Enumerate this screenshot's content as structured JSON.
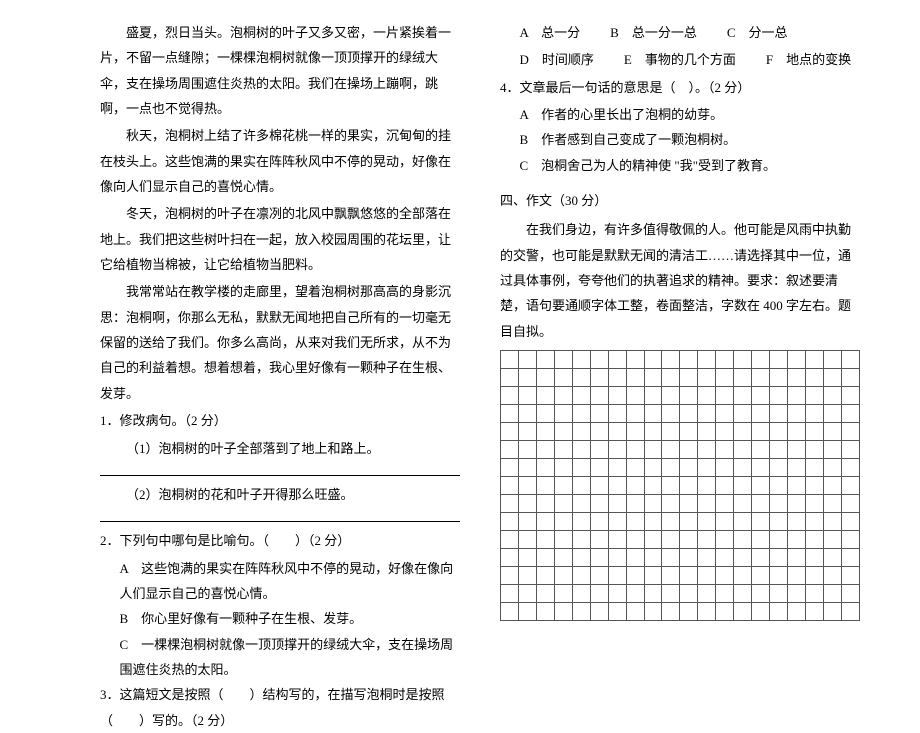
{
  "left": {
    "p1": "盛夏，烈日当头。泡桐树的叶子又多又密，一片紧挨着一片，不留一点缝隙；一棵棵泡桐树就像一顶顶撑开的绿绒大伞，支在操场周围遮住炎热的太阳。我们在操场上蹦啊，跳啊，一点也不觉得热。",
    "p2": "秋天，泡桐树上结了许多棉花桃一样的果实，沉甸甸的挂在枝头上。这些饱满的果实在阵阵秋风中不停的晃动，好像在像向人们显示自己的喜悦心情。",
    "p3": "冬天，泡桐树的叶子在凛冽的北风中飘飘悠悠的全部落在地上。我们把这些树叶扫在一起，放入校园周围的花坛里，让它给植物当棉被，让它给植物当肥料。",
    "p4": "我常常站在教学楼的走廊里，望着泡桐树那高高的身影沉思：泡桐啊，你那么无私，默默无闻地把自己所有的一切毫无保留的送给了我们。你多么高尚，从来对我们无所求，从不为自己的利益着想。想着想着，我心里好像有一颗种子在生根、发芽。",
    "q1": "1．修改病句。（2 分）",
    "q1a": "（1）泡桐树的叶子全部落到了地上和路上。",
    "q1b": "（2）泡桐树的花和叶子开得那么旺盛。",
    "q2": "2．下列句中哪句是比喻句。（　　）（2 分）",
    "q2a": "A　这些饱满的果实在阵阵秋风中不停的晃动，好像在像向人们显示自己的喜悦心情。",
    "q2b": "B　你心里好像有一颗种子在生根、发芽。",
    "q2c": "C　一棵棵泡桐树就像一顶顶撑开的绿绒大伞，支在操场周围遮住炎热的太阳。",
    "q3": "3．这篇短文是按照（　　）结构写的，在描写泡桐时是按照（　　）写的。（2 分）"
  },
  "right": {
    "opt_row1_a": "A　总一分",
    "opt_row1_b": "B　总一分一总",
    "opt_row1_c": "C　分一总",
    "opt_row2_d": "D　时间顺序",
    "opt_row2_e": "E　事物的几个方面",
    "opt_row2_f": "F　地点的变换",
    "q4": "4．文章最后一句话的意思是（　）。（2 分）",
    "q4a": "A　作者的心里长出了泡桐的幼芽。",
    "q4b": "B　作者感到自己变成了一颗泡桐树。",
    "q4c": "C　泡桐舍己为人的精神使 \"我\"受到了教育。",
    "section4_title": "四、作文（30 分）",
    "essay_prompt": "在我们身边，有许多值得敬佩的人。他可能是风雨中执勤的交警，也可能是默默无闻的清洁工……请选择其中一位，通过具体事例，夸夸他们的执著追求的精神。要求：叙述要清楚，语句要通顺字体工整，卷面整洁，字数在 400 字左右。题目自拟。"
  },
  "grid": {
    "rows": 15,
    "cols": 20,
    "border_color": "#555555"
  },
  "style": {
    "font_size_pt": 10,
    "line_height": 1.95,
    "text_color": "#000000",
    "background_color": "#ffffff"
  }
}
